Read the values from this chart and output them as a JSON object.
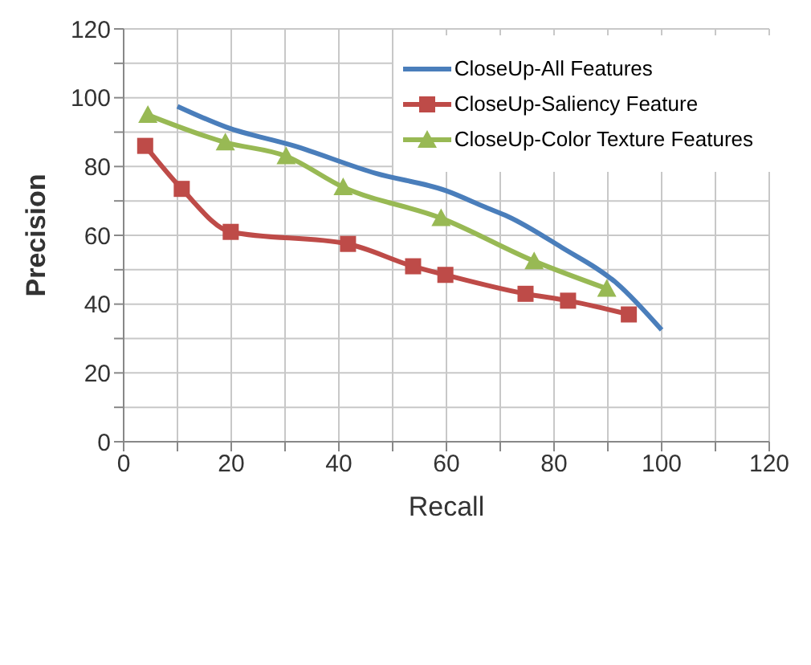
{
  "chart_data": {
    "type": "line",
    "xlabel": "Recall",
    "ylabel": "Precision",
    "xlim": [
      0,
      120
    ],
    "ylim": [
      0,
      120
    ],
    "xticks": [
      0,
      {
        "value": 10,
        "label": null
      },
      20,
      {
        "value": 30,
        "label": null
      },
      40,
      {
        "value": 50,
        "label": null
      },
      60,
      {
        "value": 70,
        "label": null
      },
      80,
      {
        "value": 90,
        "label": null
      },
      100,
      {
        "value": 110,
        "label": null
      },
      120
    ],
    "yticks": [
      0,
      {
        "value": 10,
        "label": null
      },
      20,
      {
        "value": 30,
        "label": null
      },
      40,
      {
        "value": 50,
        "label": null
      },
      60,
      {
        "value": 70,
        "label": null
      },
      80,
      {
        "value": 90,
        "label": null
      },
      100,
      {
        "value": 110,
        "label": null
      },
      120
    ],
    "grid": true,
    "legend": "top right",
    "series": [
      {
        "name": "CloseUp-All Features",
        "color": "#4a7ebb",
        "marker": "none",
        "x": [
          10,
          19,
          31.7,
          46.9,
          59.9,
          67.5,
          71.4,
          81.4,
          91.7,
          100
        ],
        "values": [
          97.5,
          91.5,
          86,
          78,
          73,
          68,
          65.5,
          56.5,
          46,
          32.5
        ]
      },
      {
        "name": "CloseUp-Saliency Feature",
        "color": "#be4b48",
        "marker": "square",
        "x": [
          4,
          10.8,
          19.9,
          41.7,
          53.8,
          59.8,
          74.7,
          82.6,
          93.9
        ],
        "values": [
          86,
          73.5,
          61,
          57.5,
          51,
          48.5,
          43,
          41,
          37
        ]
      },
      {
        "name": "CloseUp-Color Texture Features",
        "color": "#98b954",
        "marker": "triangle",
        "x": [
          4.5,
          18.9,
          30.2,
          40.8,
          59,
          76.3,
          89.8
        ],
        "values": [
          95,
          87,
          83,
          74,
          65,
          52.5,
          44.5
        ]
      }
    ]
  }
}
